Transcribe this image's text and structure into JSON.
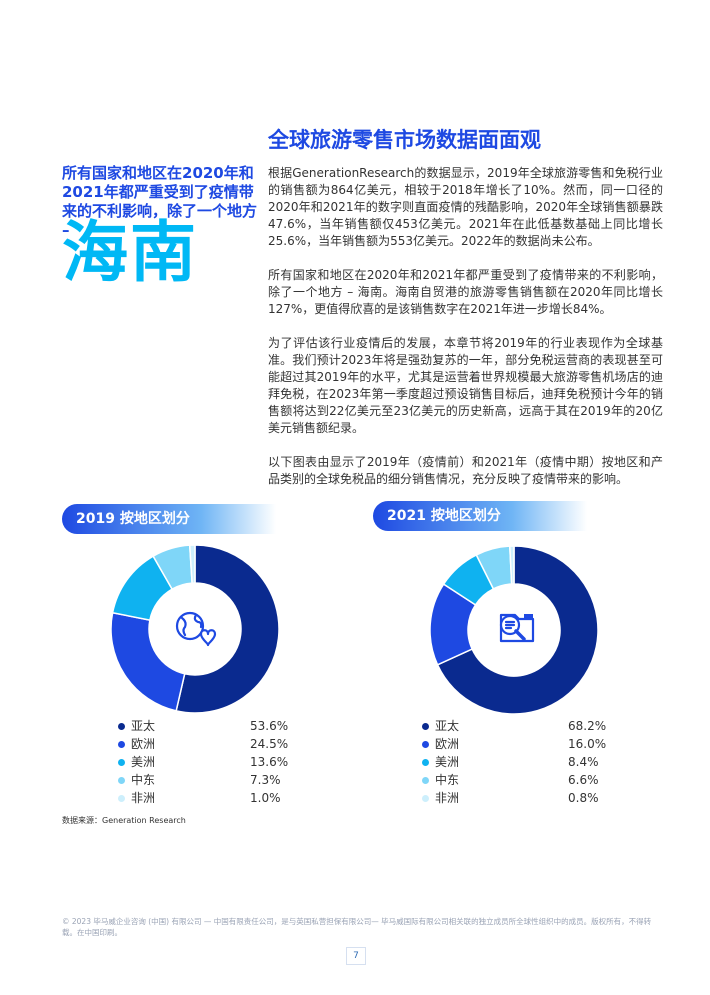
{
  "lead": "所有国家和地区在2020年和2021年都严重受到了疫情带来的不利影响，除了一个地方 –",
  "highlight": "海南",
  "section_title": "全球旅游零售市场数据面面观",
  "paragraphs": [
    "根据GenerationResearch的数据显示，2019年全球旅游零售和免税行业的销售额为864亿美元，相较于2018年增长了10%。然而，同一口径的2020年和2021年的数字则直面疫情的残酷影响，2020年全球销售额暴跌47.6%，当年销售额仅453亿美元。2021年在此低基数基础上同比增长25.6%，当年销售额为553亿美元。2022年的数据尚未公布。",
    "所有国家和地区在2020年和2021年都严重受到了疫情带来的不利影响，除了一个地方 – 海南。海南自贸港的旅游零售销售额在2020年同比增长127%，更值得欣喜的是该销售数字在2021年进一步增长84%。",
    "为了评估该行业疫情后的发展，本章节将2019年的行业表现作为全球基准。我们预计2023年将是强劲复苏的一年，部分免税运营商的表现甚至可能超过其2019年的水平，尤其是运营着世界规模最大旅游零售机场店的迪拜免税，在2023年第一季度超过预设销售目标后，迪拜免税预计今年的销售额将达到22亿美元至23亿美元的历史新高，远高于其在2019年的20亿美元销售额纪录。",
    "以下图表由显示了2019年（疫情前）和2021年（疫情中期）按地区和产品类别的全球免税品的细分销售情况，充分反映了疫情带来的影响。"
  ],
  "chart_data": [
    {
      "type": "pie",
      "title": "2019 按地区划分",
      "categories": [
        "亚太",
        "欧洲",
        "美洲",
        "中东",
        "非洲"
      ],
      "values": [
        53.6,
        24.5,
        13.6,
        7.3,
        1.0
      ],
      "value_labels": [
        "53.6%",
        "24.5%",
        "13.6%",
        "7.3%",
        "1.0%"
      ],
      "colors": [
        "#0a2a8f",
        "#1e49e2",
        "#0fb2f0",
        "#7fd6f8",
        "#cdeffc"
      ],
      "center_icon": "globe-heart-icon",
      "legend": "below"
    },
    {
      "type": "pie",
      "title": "2021 按地区划分",
      "categories": [
        "亚太",
        "欧洲",
        "美洲",
        "中东",
        "非洲"
      ],
      "values": [
        68.2,
        16.0,
        8.4,
        6.6,
        0.8
      ],
      "value_labels": [
        "68.2%",
        "16.0%",
        "8.4%",
        "6.6%",
        "0.8%"
      ],
      "colors": [
        "#0a2a8f",
        "#1e49e2",
        "#0fb2f0",
        "#7fd6f8",
        "#cdeffc"
      ],
      "center_icon": "document-search-icon",
      "legend": "below"
    }
  ],
  "source": "数据来源：Generation Research",
  "footer": "© 2023 毕马威企业咨询 (中国) 有限公司 — 中国有限责任公司，是与英国私营担保有限公司— 毕马威国际有限公司相关联的独立成员所全球性组织中的成员。版权所有，不得转载。在中国印刷。",
  "page_number": "7"
}
